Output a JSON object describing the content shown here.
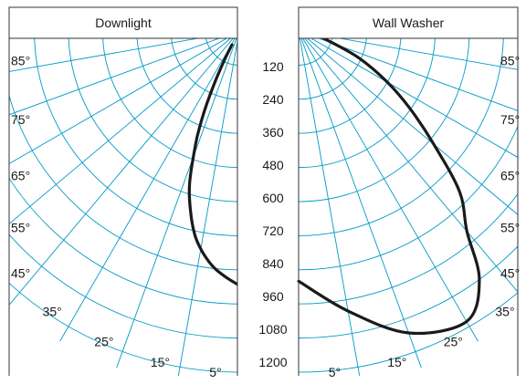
{
  "panels": {
    "left_title": "Downlight",
    "right_title": "Wall Washer"
  },
  "colors": {
    "grid": "#0099c6",
    "curve": "#1a1a1a",
    "frame": "#333333",
    "text": "#1a1a1a"
  },
  "chart_data": [
    {
      "type": "polar",
      "title": "Downlight",
      "angle_ticks": [
        "85°",
        "75°",
        "65°",
        "55°",
        "45°",
        "35°",
        "25°",
        "15°",
        "5°"
      ],
      "angle_tick_values": [
        85,
        75,
        65,
        55,
        45,
        35,
        25,
        15,
        5
      ],
      "radial_ticks": [
        "120",
        "240",
        "360",
        "480",
        "600",
        "720",
        "840",
        "960",
        "1080",
        "1200"
      ],
      "radial_tick_values": [
        120,
        240,
        360,
        480,
        600,
        720,
        840,
        960,
        1080,
        1200
      ],
      "series": [
        {
          "points": [
            [
              0,
              895
            ],
            [
              3,
              868
            ],
            [
              6,
              838
            ],
            [
              9,
              795
            ],
            [
              12,
              740
            ],
            [
              15,
              660
            ],
            [
              18,
              565
            ],
            [
              21,
              430
            ],
            [
              22.5,
              360
            ],
            [
              24,
              280
            ],
            [
              25.5,
              195
            ],
            [
              27,
              115
            ],
            [
              28,
              55
            ]
          ]
        }
      ]
    },
    {
      "type": "polar",
      "title": "Wall Washer",
      "angle_ticks": [
        "85°",
        "75°",
        "65°",
        "55°",
        "45°",
        "35°",
        "25°",
        "15°",
        "5°"
      ],
      "angle_tick_values": [
        85,
        75,
        65,
        55,
        45,
        35,
        25,
        15,
        5
      ],
      "radial_ticks": [
        "120",
        "240",
        "360",
        "480",
        "600",
        "720",
        "840",
        "960",
        "1080",
        "1200"
      ],
      "radial_tick_values": [
        120,
        240,
        360,
        480,
        600,
        720,
        840,
        960,
        1080,
        1200
      ],
      "series": [
        {
          "points": [
            [
              0,
              880
            ],
            [
              10,
              1000
            ],
            [
              20,
              1130
            ],
            [
              30,
              1180
            ],
            [
              36,
              1080
            ],
            [
              40,
              920
            ],
            [
              45,
              800
            ],
            [
              50,
              620
            ],
            [
              55,
              480
            ],
            [
              60,
              360
            ],
            [
              66,
              230
            ],
            [
              72,
              110
            ],
            [
              75,
              80
            ]
          ]
        }
      ]
    }
  ]
}
